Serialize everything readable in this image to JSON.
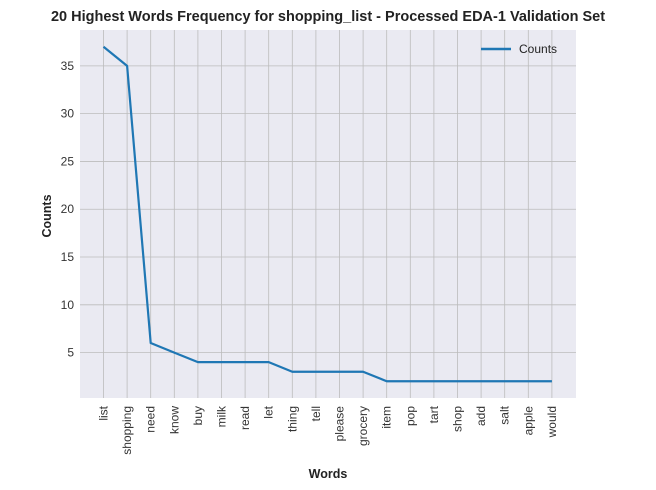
{
  "chart_data": {
    "type": "line",
    "title": "20 Highest Words Frequency for shopping_list - Processed EDA-1 Validation Set",
    "xlabel": "Words",
    "ylabel": "Counts",
    "categories": [
      "list",
      "shopping",
      "need",
      "know",
      "buy",
      "milk",
      "read",
      "let",
      "thing",
      "tell",
      "please",
      "grocery",
      "item",
      "pop",
      "tart",
      "shop",
      "add",
      "salt",
      "apple",
      "would"
    ],
    "series": [
      {
        "name": "Counts",
        "values": [
          37,
          35,
          6,
          5,
          4,
          4,
          4,
          4,
          3,
          3,
          3,
          3,
          2,
          2,
          2,
          2,
          2,
          2,
          2,
          2
        ]
      }
    ],
    "yticks": [
      5,
      10,
      15,
      20,
      25,
      30,
      35
    ],
    "ylim": [
      0.25,
      38.75
    ],
    "grid": true,
    "legend_position": "top-right",
    "colors": {
      "line": "#1f77b4",
      "plot_bg": "#eaeaf2",
      "grid": "#bcbcbc"
    }
  }
}
